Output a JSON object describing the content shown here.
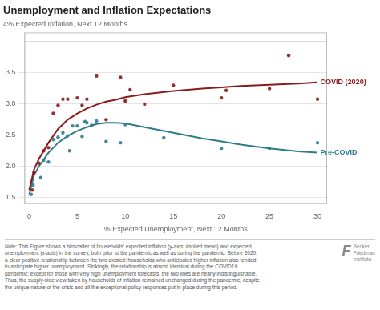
{
  "chart_data": {
    "type": "scatter",
    "title": "Unemployment and Inflation Expectations",
    "xlabel": "% Expected Unemployment, Next 12 Months",
    "ylabel": "4% Expected Inflation, Next 12 Months",
    "xlim": [
      -0.5,
      31
    ],
    "ylim": [
      1.4,
      4.15
    ],
    "xticks": [
      0,
      5,
      10,
      15,
      20,
      25,
      30
    ],
    "yticks": [
      1.5,
      {
        "value": 2.0,
        "label": "2.0"
      },
      2.5,
      {
        "value": 3.0,
        "label": "3.0"
      },
      3.5
    ],
    "grid": "y",
    "hlines": [
      4.0
    ],
    "series": [
      {
        "name": "Pre-COVID",
        "type": "scatter",
        "color": "#2e7d8a",
        "x": [
          0.2,
          0.4,
          1.2,
          1.5,
          2.0,
          2.5,
          3.0,
          3.5,
          4.0,
          4.2,
          4.5,
          5.0,
          5.5,
          5.8,
          6.0,
          6.5,
          7.0,
          8.0,
          9.5,
          10.0,
          14.0,
          20.0,
          25.0,
          30.0
        ],
        "values": [
          1.55,
          1.7,
          1.82,
          2.1,
          2.07,
          2.43,
          2.47,
          2.54,
          2.49,
          2.25,
          2.65,
          2.65,
          2.48,
          2.72,
          2.7,
          2.66,
          2.73,
          2.4,
          2.38,
          2.67,
          2.46,
          2.29,
          2.29,
          2.38
        ]
      },
      {
        "name": "COVID (2020)",
        "type": "scatter",
        "color": "#8b1a1a",
        "x": [
          0.3,
          0.5,
          1.0,
          1.5,
          2.0,
          2.5,
          3.0,
          3.5,
          4.0,
          5.0,
          5.5,
          6.0,
          7.0,
          8.0,
          9.5,
          10.0,
          10.5,
          12.0,
          15.0,
          20.0,
          20.5,
          25.0,
          27.0,
          30.0
        ],
        "values": [
          1.62,
          1.9,
          2.05,
          2.25,
          2.3,
          2.85,
          2.98,
          3.08,
          3.08,
          3.1,
          2.98,
          3.08,
          3.45,
          2.75,
          3.43,
          3.05,
          3.23,
          3.0,
          3.3,
          3.1,
          3.22,
          3.25,
          3.78,
          3.08
        ]
      },
      {
        "name": "COVID (2020)",
        "type": "line",
        "color": "#8b1a1a",
        "x": [
          0.0,
          0.5,
          1.0,
          2.0,
          3.0,
          4.0,
          5.0,
          6.0,
          7.0,
          8.0,
          9.0,
          10.0,
          12.0,
          15.0,
          18.0,
          20.0,
          22.0,
          25.0,
          28.0,
          30.0
        ],
        "values": [
          1.62,
          1.95,
          2.12,
          2.38,
          2.6,
          2.75,
          2.85,
          2.93,
          2.99,
          3.04,
          3.07,
          3.11,
          3.16,
          3.21,
          3.25,
          3.27,
          3.29,
          3.31,
          3.33,
          3.35
        ]
      },
      {
        "name": "Pre-COVID",
        "type": "line",
        "color": "#2e7d8a",
        "x": [
          0.0,
          0.5,
          1.0,
          2.0,
          3.0,
          4.0,
          5.0,
          6.0,
          7.0,
          8.0,
          9.0,
          10.0,
          12.0,
          15.0,
          18.0,
          20.0,
          22.0,
          25.0,
          28.0,
          30.0
        ],
        "values": [
          1.55,
          1.86,
          2.0,
          2.22,
          2.38,
          2.49,
          2.57,
          2.63,
          2.68,
          2.7,
          2.7,
          2.69,
          2.63,
          2.54,
          2.45,
          2.4,
          2.35,
          2.29,
          2.24,
          2.22
        ]
      }
    ],
    "annotations": [
      {
        "text": "COVID (2020)",
        "x": 30.3,
        "y": 3.35,
        "color": "#8b1a1a"
      },
      {
        "text": "Pre-COVID",
        "x": 30.3,
        "y": 2.22,
        "color": "#2e7d8a"
      }
    ],
    "note": "Note: This Figure shows a binscatter of households' expected inflation (y-axis; implied mean) and expected\nunemployment (x-axis) in the survey, both prior to the pandemic as well as during the pandemic. Before 2020,\na clear positive relationship between the two existed: households who anticipated higher inflation also tended\nto anticipate higher unemployment. Strikingly, the relationship is almost identical during the COVID19\npandemic: except for those with very high unemployment forecasts, the two lines are nearly indistinguishable.\nThus, the supply-side view taken by households of inflation remained unchanged during the pandemic, despite\nthe unique nature of the crisis and all the exceptional policy responses put in place during this period.",
    "logo": [
      "F",
      "Becker\nFriedman\nInstitute"
    ],
    "legend": false
  }
}
